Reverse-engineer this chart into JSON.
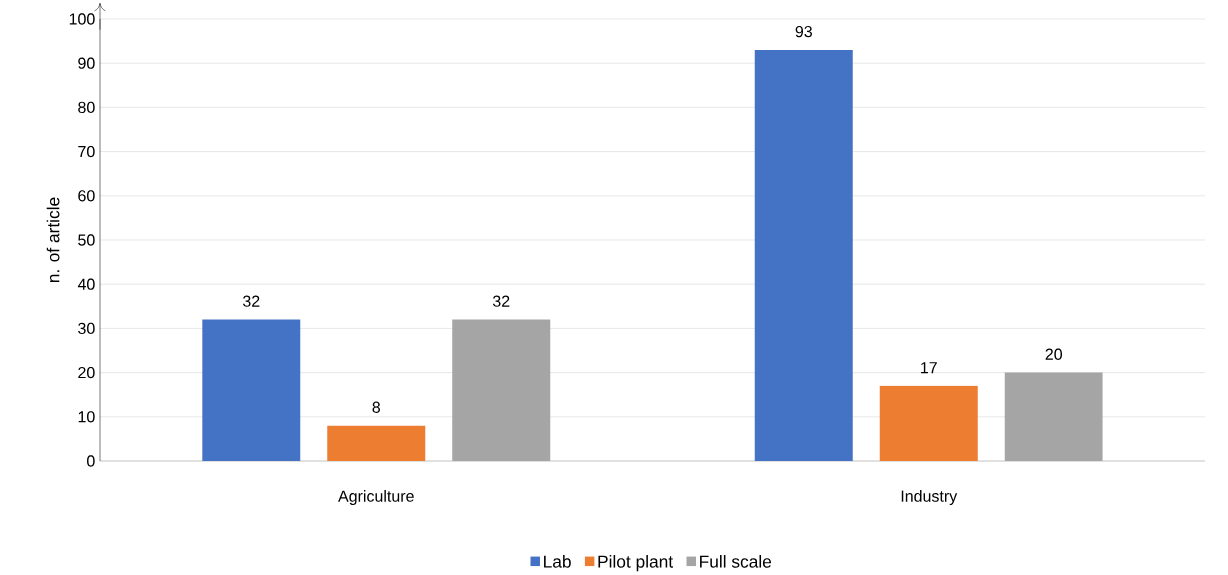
{
  "chart_data": {
    "type": "bar",
    "ylabel": "n. of article",
    "categories": [
      "Agriculture",
      "Industry"
    ],
    "series": [
      {
        "name": "Lab",
        "color": "#4472c4",
        "values": [
          32,
          93
        ]
      },
      {
        "name": "Pilot plant",
        "color": "#ed7d31",
        "values": [
          8,
          17
        ]
      },
      {
        "name": "Full scale",
        "color": "#a5a5a5",
        "values": [
          32,
          20
        ]
      }
    ],
    "ylim": [
      0,
      100
    ],
    "yticks": [
      0,
      10,
      20,
      30,
      40,
      50,
      60,
      70,
      80,
      90,
      100
    ],
    "grid": "y",
    "legend": "bottom",
    "data_labels": true
  }
}
